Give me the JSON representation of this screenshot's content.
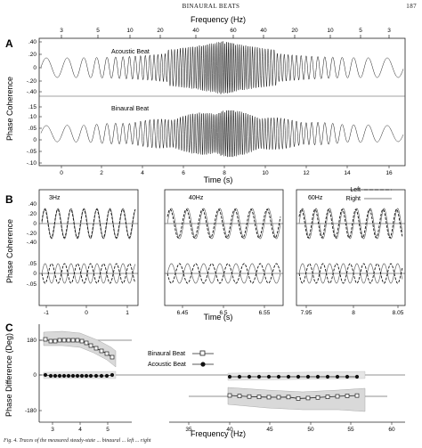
{
  "page_header": {
    "title": "BINAURAL BEATS",
    "page_number": "187"
  },
  "panels": {
    "A": {
      "label": "A",
      "top_axis_title": "Frequency (Hz)",
      "top_ticks": [
        "3",
        "5",
        "10",
        "20",
        "40",
        "60",
        "40",
        "20",
        "10",
        "5",
        "3"
      ],
      "y_title": "Phase Coherence",
      "acoustic_label": "Acoustic Beat",
      "acoustic_yticks": [
        ".40",
        ".20",
        "0",
        "-.20",
        "-.40"
      ],
      "binaural_label": "Binaural Beat",
      "binaural_yticks": [
        ".15",
        ".10",
        ".05",
        "0",
        "-.05",
        "-.10"
      ],
      "x_title": "Time (s)",
      "x_ticks": [
        "0",
        "2",
        "4",
        "6",
        "8",
        "10",
        "12",
        "14",
        "16"
      ]
    },
    "B": {
      "label": "B",
      "y_title": "Phase Coherence",
      "x_title": "Time (s)",
      "upper_yticks": [
        ".40",
        ".20",
        "0",
        "-.20",
        "-.40"
      ],
      "lower_yticks": [
        ".05",
        "0",
        "-.05"
      ],
      "subplots": [
        {
          "freq_label": "3Hz",
          "x_ticks": [
            "-1",
            "0",
            "1"
          ]
        },
        {
          "freq_label": "40Hz",
          "x_ticks": [
            "6.45",
            "6.5",
            "6.55"
          ]
        },
        {
          "freq_label": "60Hz",
          "x_ticks": [
            "7.95",
            "8",
            "8.05"
          ]
        }
      ],
      "legend": {
        "left": "Left",
        "right": "Right"
      }
    },
    "C": {
      "label": "C",
      "y_title": "Phase Difference (Deg)",
      "y_ticks": [
        "180",
        "0",
        "-180"
      ],
      "x_title": "Frequency (Hz)",
      "x_ticks_left": [
        "3",
        "4",
        "5"
      ],
      "x_ticks_right": [
        "35",
        "40",
        "45",
        "50",
        "55",
        "60"
      ],
      "legend": {
        "binaural": "Binaural Beat",
        "acoustic": "Acoustic Beat"
      }
    }
  },
  "caption_fragment": "Fig. 4. Traces of the measured steady-state ... binaural ... left ... right"
}
